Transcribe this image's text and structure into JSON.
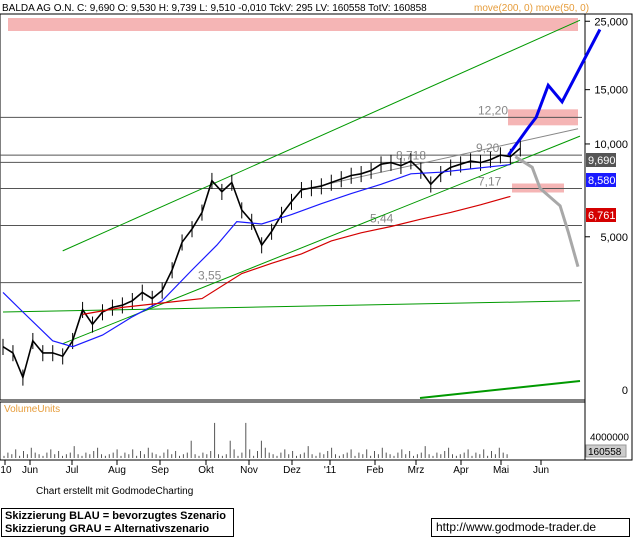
{
  "header": {
    "text": "BALDA AG O.N. C: 9,690 O: 9,530 H: 9,739 L: 9,510 -0,010 TckV: 295 LV: 160558 TotV: 160858",
    "ma_labels": "move(200, 0) move(50, 0)"
  },
  "volume_label": "VolumeUnits",
  "credit": "Chart erstellt mit GodmodeCharting",
  "notes": [
    "Skizzierung BLAU = bevorzugtes Szenario",
    "Skizzierung GRAU = Alternativszenario"
  ],
  "url": "http://www.godmode-trader.de",
  "colors": {
    "price": "#000000",
    "ma50": "#1a1aff",
    "ma200": "#d40000",
    "trend": "#009900",
    "hline": "#555555",
    "zone": "#f5b5b5",
    "scenario_blue": "#0000ee",
    "scenario_grey": "#a8a8a8"
  },
  "chart_data": {
    "type": "line",
    "y_scale": "log",
    "ylim": [
      1.5,
      26
    ],
    "y_ticks": [
      {
        "value": 25,
        "label": "25,000"
      },
      {
        "value": 15,
        "label": "15,000"
      },
      {
        "value": 10,
        "label": "10,000"
      },
      {
        "value": 5,
        "label": "5,000"
      }
    ],
    "y_zero_label": "0",
    "x_ticks": [
      "'10",
      "Jun",
      "Jul",
      "Aug",
      "Sep",
      "Okt",
      "Nov",
      "Dez",
      "'11",
      "Feb",
      "Mrz",
      "Apr",
      "Mai",
      "Jun"
    ],
    "price_boxes": [
      {
        "label": "9,690",
        "value": 9.69,
        "color": "#555555"
      },
      {
        "label": "8,580",
        "value": 8.58,
        "color": "#1a1aff"
      },
      {
        "label": "6,761",
        "value": 6.761,
        "color": "#d40000"
      }
    ],
    "levels": [
      {
        "value": 12.2,
        "label": "12,20"
      },
      {
        "value": 9.2,
        "label": "9,20"
      },
      {
        "value": 8.718,
        "label": "8,718"
      },
      {
        "value": 7.17,
        "label": "7,17"
      },
      {
        "value": 5.44,
        "label": "5,44"
      },
      {
        "value": 3.55,
        "label": "3,55"
      }
    ],
    "series": [
      {
        "name": "Schlusskurs",
        "type": "close",
        "x": [
          0,
          10,
          20,
          30,
          40,
          50,
          60,
          70,
          80,
          90,
          100,
          110,
          120,
          130,
          140,
          150,
          160,
          170,
          180,
          190,
          200,
          210,
          220,
          230,
          240,
          250,
          260,
          270,
          280,
          290,
          300,
          310,
          320,
          330,
          340,
          350,
          360,
          370,
          380,
          390,
          400,
          410,
          420,
          430,
          440,
          450,
          460,
          470,
          480,
          490,
          500,
          510,
          520
        ],
        "values": [
          2.2,
          2.1,
          1.75,
          2.3,
          2.1,
          2.1,
          2.05,
          2.3,
          2.9,
          2.6,
          2.85,
          2.95,
          3.0,
          3.1,
          3.3,
          3.15,
          3.35,
          3.9,
          4.8,
          5.3,
          6.0,
          7.6,
          7.0,
          7.5,
          6.1,
          5.6,
          4.7,
          5.2,
          5.9,
          6.5,
          7.1,
          7.2,
          7.3,
          7.5,
          7.7,
          7.9,
          8.0,
          8.2,
          8.6,
          8.7,
          8.5,
          8.8,
          8.2,
          7.4,
          8.0,
          8.4,
          8.6,
          8.8,
          8.7,
          8.9,
          9.2,
          9.1,
          9.69
        ]
      },
      {
        "name": "move(50, 0)",
        "type": "ma50",
        "x": [
          0,
          20,
          50,
          70,
          100,
          130,
          160,
          190,
          215,
          235,
          260,
          290,
          320,
          350,
          380,
          410,
          440,
          470,
          500,
          510
        ],
        "values": [
          3.3,
          2.85,
          2.3,
          2.2,
          2.4,
          2.75,
          3.1,
          3.9,
          4.7,
          5.6,
          5.5,
          5.9,
          6.4,
          6.9,
          7.4,
          8.0,
          8.1,
          8.3,
          8.5,
          8.58
        ]
      },
      {
        "name": "move(200, 0)",
        "type": "ma200",
        "x": [
          80,
          120,
          160,
          200,
          240,
          270,
          300,
          330,
          360,
          390,
          420,
          450,
          480,
          510
        ],
        "values": [
          2.8,
          2.95,
          3.05,
          3.15,
          3.8,
          4.1,
          4.4,
          4.85,
          5.15,
          5.4,
          5.7,
          6.0,
          6.35,
          6.761
        ]
      }
    ],
    "trend_lines": [
      {
        "from": [
          60,
          4.5
        ],
        "to": [
          580,
          25.2
        ]
      },
      {
        "from": [
          60,
          2.25
        ],
        "to": [
          580,
          10.6
        ]
      },
      {
        "from": [
          0,
          2.85
        ],
        "to": [
          580,
          3.1
        ]
      }
    ],
    "scenario_blue": {
      "x": [
        508,
        520,
        528,
        536,
        548,
        562,
        600
      ],
      "values": [
        9.2,
        10.4,
        11.3,
        12.2,
        15.5,
        13.7,
        23.5
      ]
    },
    "scenario_grey": {
      "x": [
        515,
        532,
        540,
        560,
        568,
        578
      ],
      "values": [
        9.1,
        8.4,
        7.17,
        6.3,
        5.2,
        4.0
      ]
    },
    "volume": {
      "ylim": [
        0,
        10000000
      ],
      "tick_label": "4000000",
      "last_label": "160558"
    }
  }
}
